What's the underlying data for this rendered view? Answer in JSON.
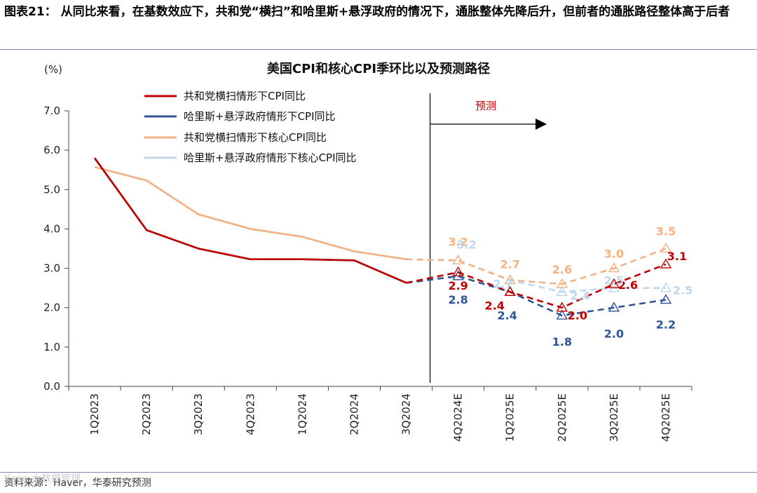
{
  "figure": {
    "title": "图表21：  从同比来看，在基数效应下，共和党“横扫”和哈里斯+悬浮政府的情况下，通胀整体先降后升，但前者的通胀路径整体高于后者",
    "source": "资料来源：Haver，华泰研究预测",
    "watermark": "Kaoo 大数据管理"
  },
  "chart_data": {
    "type": "line",
    "title": "美国CPI和核心CPI季环比以及预测路径",
    "ylabel": "(%)",
    "ylim": [
      0,
      7
    ],
    "yticks": [
      "0.0",
      "1.0",
      "2.0",
      "3.0",
      "4.0",
      "5.0",
      "6.0",
      "7.0"
    ],
    "categories": [
      "1Q2023",
      "2Q2023",
      "3Q2023",
      "4Q2023",
      "1Q2024",
      "2Q2024",
      "3Q2024",
      "4Q2024E",
      "1Q2025E",
      "2Q2025E",
      "3Q2025E",
      "4Q2025E"
    ],
    "forecast_label": "预测",
    "forecast_start_index": 7,
    "series": [
      {
        "name": "共和党横扫情形下CPI同比",
        "color": "#c00000",
        "values": [
          5.8,
          3.97,
          3.5,
          3.23,
          3.23,
          3.2,
          2.63,
          2.9,
          2.4,
          2.0,
          2.6,
          3.1
        ],
        "labels": [
          "",
          "",
          "",
          "",
          "",
          "",
          "",
          "2.9",
          "2.4",
          "2.0",
          "2.6",
          "3.1"
        ]
      },
      {
        "name": "哈里斯+悬浮政府情形下CPI同比",
        "color": "#2f5597",
        "values": [
          5.8,
          3.97,
          3.5,
          3.23,
          3.23,
          3.2,
          2.63,
          2.8,
          2.4,
          1.8,
          2.0,
          2.2
        ],
        "labels": [
          "",
          "",
          "",
          "",
          "",
          "",
          "",
          "2.8",
          "2.4",
          "1.8",
          "2.0",
          "2.2"
        ]
      },
      {
        "name": "共和党横扫情形下核心CPI同比",
        "color": "#f4b183",
        "values": [
          5.57,
          5.23,
          4.37,
          4.0,
          3.8,
          3.43,
          3.23,
          3.2,
          2.7,
          2.6,
          3.0,
          3.5
        ],
        "labels": [
          "",
          "",
          "",
          "",
          "",
          "",
          "",
          "3.2",
          "2.7",
          "2.6",
          "3.0",
          "3.5"
        ]
      },
      {
        "name": "哈里斯+悬浮政府情形下核心CPI同比",
        "color": "#bdd7ee",
        "values": [
          5.57,
          5.23,
          4.37,
          4.0,
          3.8,
          3.43,
          3.23,
          3.2,
          2.7,
          2.4,
          2.5,
          2.5
        ],
        "labels": [
          "",
          "",
          "",
          "",
          "",
          "",
          "",
          "3.2",
          "2.7",
          "2.4",
          "2.5",
          "2.5"
        ]
      }
    ]
  }
}
